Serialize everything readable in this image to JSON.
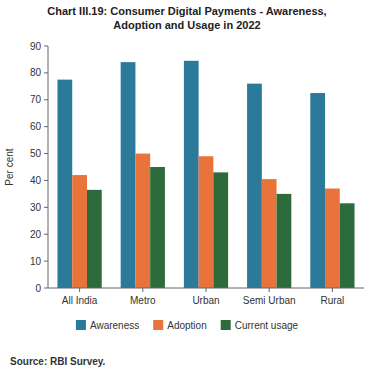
{
  "chart_data": {
    "type": "bar",
    "title": "Chart III.19: Consumer Digital Payments - Awareness,\nAdoption and Usage in 2022",
    "categories": [
      "All India",
      "Metro",
      "Urban",
      "Semi Urban",
      "Rural"
    ],
    "series": [
      {
        "name": "Awareness",
        "color": "#2b7a9a",
        "values": [
          77.5,
          84,
          84.5,
          76,
          72.5
        ]
      },
      {
        "name": "Adoption",
        "color": "#e8743b",
        "values": [
          42,
          50,
          49,
          40.5,
          37
        ]
      },
      {
        "name": "Current usage",
        "color": "#2d6b3c",
        "values": [
          36.5,
          45,
          43,
          35,
          31.5
        ]
      }
    ],
    "ylabel": "Per cent",
    "ylim": [
      0,
      90
    ],
    "yticks": [
      0,
      10,
      20,
      30,
      40,
      50,
      60,
      70,
      80,
      90
    ],
    "source": "Source: RBI Survey.",
    "legend": "bottom",
    "grid": false
  }
}
